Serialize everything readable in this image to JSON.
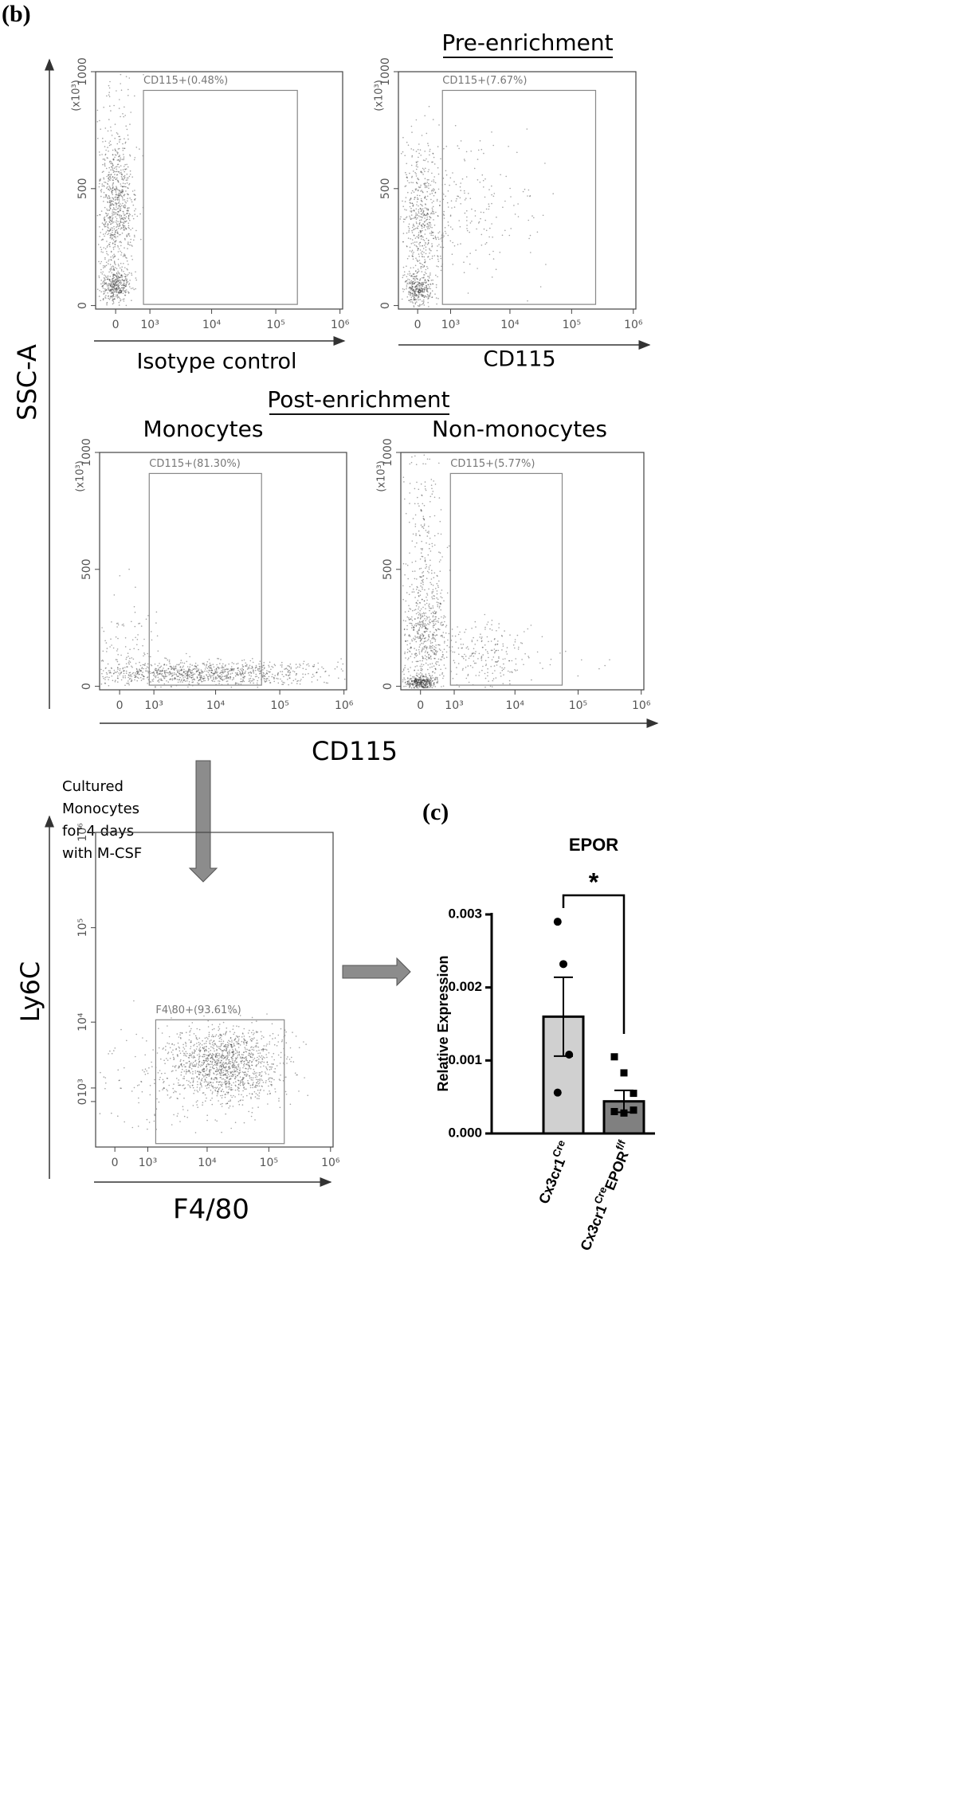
{
  "panel_labels": {
    "b": "(b)",
    "c": "(c)"
  },
  "headings": {
    "pre": "Pre-enrichment",
    "post": "Post-enrichment"
  },
  "shared_labels": {
    "ssc": "SSC-A",
    "cd115": "CD115"
  },
  "culture_note": [
    "Cultured",
    "Monocytes",
    "for 4 days",
    "with M-CSF"
  ],
  "chart_data": [
    {
      "type": "flow",
      "xlabel": "Isotype control",
      "y_unit": "(x10³)",
      "xscale": "biexponential",
      "xlim": [
        -500,
        1100000
      ],
      "ylim": [
        -15,
        1000
      ],
      "xticks": [
        0,
        {
          "value": 1000,
          "label": "10³"
        },
        {
          "value": 10000,
          "label": "10⁴"
        },
        {
          "value": 100000,
          "label": "10⁵"
        },
        {
          "value": 1000000,
          "label": "10⁶"
        }
      ],
      "yticks": [
        0,
        500,
        1000
      ],
      "gate": {
        "label": "CD115+(0.48%)",
        "x": [
          750,
          217000
        ],
        "y": [
          5,
          920
        ]
      }
    },
    {
      "type": "flow",
      "xlabel": "CD115",
      "y_unit": "(x10³)",
      "xscale": "biexponential",
      "xlim": [
        -500,
        1100000
      ],
      "ylim": [
        -15,
        1000
      ],
      "xticks": [
        0,
        {
          "value": 1000,
          "label": "10³"
        },
        {
          "value": 10000,
          "label": "10⁴"
        },
        {
          "value": 100000,
          "label": "10⁵"
        },
        {
          "value": 1000000,
          "label": "10⁶"
        }
      ],
      "yticks": [
        0,
        500,
        1000
      ],
      "gate": {
        "label": "CD115+(7.67%)",
        "x": [
          680,
          245000
        ],
        "y": [
          5,
          920
        ]
      }
    },
    {
      "type": "flow",
      "title": "Monocytes",
      "y_unit": "(x10³)",
      "xscale": "biexponential",
      "xlim": [
        -500,
        1100000
      ],
      "ylim": [
        -15,
        1000
      ],
      "xticks": [
        0,
        {
          "value": 1000,
          "label": "10³"
        },
        {
          "value": 10000,
          "label": "10⁴"
        },
        {
          "value": 100000,
          "label": "10⁵"
        },
        {
          "value": 1000000,
          "label": "10⁶"
        }
      ],
      "yticks": [
        0,
        500,
        1000
      ],
      "gate": {
        "label": "CD115+(81.30%)",
        "x": [
          815,
          52000
        ],
        "y": [
          5,
          910
        ]
      }
    },
    {
      "type": "flow",
      "title": "Non-monocytes",
      "y_unit": "(x10³)",
      "xscale": "biexponential",
      "xlim": [
        -500,
        1100000
      ],
      "ylim": [
        -15,
        1000
      ],
      "xticks": [
        0,
        {
          "value": 1000,
          "label": "10³"
        },
        {
          "value": 10000,
          "label": "10⁴"
        },
        {
          "value": 100000,
          "label": "10⁵"
        },
        {
          "value": 1000000,
          "label": "10⁶"
        }
      ],
      "yticks": [
        0,
        500,
        1000
      ],
      "gate": {
        "label": "CD115+(5.77%)",
        "x": [
          845,
          56000
        ],
        "y": [
          5,
          910
        ]
      }
    },
    {
      "type": "flow",
      "xlabel": "F4/80",
      "ylabel": "Ly6C",
      "xscale": "biexponential",
      "yscale": "biexponential",
      "xlim": [
        -500,
        1100000
      ],
      "ylim": [
        -4000,
        1000000
      ],
      "xticks": [
        0,
        {
          "value": 1000,
          "label": "10³"
        },
        {
          "value": 10000,
          "label": "10⁴"
        },
        {
          "value": 100000,
          "label": "10⁵"
        },
        {
          "value": 1000000,
          "label": "10⁶"
        }
      ],
      "yticks": [
        0,
        {
          "value": 1000,
          "label": "10³"
        },
        {
          "value": 10000,
          "label": "10⁴"
        },
        {
          "value": 100000,
          "label": "10⁵"
        },
        {
          "value": 1000000,
          "label": "10⁶"
        }
      ],
      "gate": {
        "label": "F4\\80+(93.61%)",
        "x": [
          1400,
          178000
        ],
        "y": [
          -3600,
          10600
        ]
      }
    },
    {
      "type": "bar",
      "title": "EPOR",
      "ylabel": "Relative Expression",
      "categories": [
        [
          "Cx3cr1",
          "Cre"
        ],
        [
          "Cx3cr1",
          "Cre",
          "EPOR",
          "f/f"
        ]
      ],
      "values": [
        0.0016,
        0.00044
      ],
      "errors": [
        0.00054,
        0.00015
      ],
      "points": [
        [
          0.0029,
          0.00232,
          0.00108,
          0.00056
        ],
        [
          0.00105,
          0.00083,
          0.00055,
          0.0003,
          0.00028,
          0.00032
        ]
      ],
      "colors": [
        "#d0d0d0",
        "#808080"
      ],
      "ylim": [
        0,
        0.003
      ],
      "yticks": [
        {
          "value": 0,
          "label": "0.000"
        },
        0.001,
        0.002,
        0.003
      ],
      "annotation": "*"
    }
  ]
}
